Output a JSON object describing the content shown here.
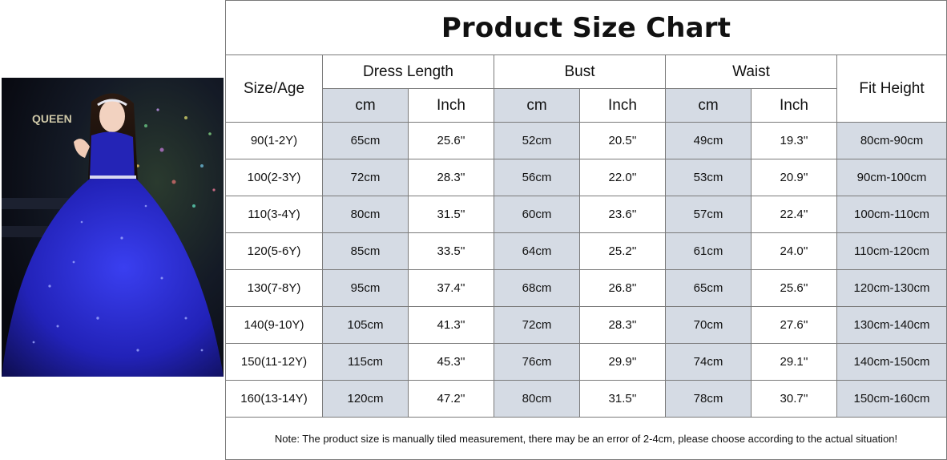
{
  "photo": {
    "signage_text": "QUEEN"
  },
  "chart": {
    "title": "Product Size Chart",
    "headers": {
      "size_age": "Size/Age",
      "dress_length": "Dress Length",
      "bust": "Bust",
      "waist": "Waist",
      "fit_height": "Fit Height",
      "cm": "cm",
      "inch": "Inch"
    },
    "rows": [
      {
        "size": "90(1-2Y)",
        "length_cm": "65cm",
        "length_in": "25.6''",
        "bust_cm": "52cm",
        "bust_in": "20.5''",
        "waist_cm": "49cm",
        "waist_in": "19.3''",
        "fit": "80cm-90cm"
      },
      {
        "size": "100(2-3Y)",
        "length_cm": "72cm",
        "length_in": "28.3''",
        "bust_cm": "56cm",
        "bust_in": "22.0''",
        "waist_cm": "53cm",
        "waist_in": "20.9''",
        "fit": "90cm-100cm"
      },
      {
        "size": "110(3-4Y)",
        "length_cm": "80cm",
        "length_in": "31.5''",
        "bust_cm": "60cm",
        "bust_in": "23.6''",
        "waist_cm": "57cm",
        "waist_in": "22.4''",
        "fit": "100cm-110cm"
      },
      {
        "size": "120(5-6Y)",
        "length_cm": "85cm",
        "length_in": "33.5''",
        "bust_cm": "64cm",
        "bust_in": "25.2''",
        "waist_cm": "61cm",
        "waist_in": "24.0''",
        "fit": "110cm-120cm"
      },
      {
        "size": "130(7-8Y)",
        "length_cm": "95cm",
        "length_in": "37.4''",
        "bust_cm": "68cm",
        "bust_in": "26.8''",
        "waist_cm": "65cm",
        "waist_in": "25.6''",
        "fit": "120cm-130cm"
      },
      {
        "size": "140(9-10Y)",
        "length_cm": "105cm",
        "length_in": "41.3''",
        "bust_cm": "72cm",
        "bust_in": "28.3''",
        "waist_cm": "70cm",
        "waist_in": "27.6''",
        "fit": "130cm-140cm"
      },
      {
        "size": "150(11-12Y)",
        "length_cm": "115cm",
        "length_in": "45.3''",
        "bust_cm": "76cm",
        "bust_in": "29.9''",
        "waist_cm": "74cm",
        "waist_in": "29.1''",
        "fit": "140cm-150cm"
      },
      {
        "size": "160(13-14Y)",
        "length_cm": "120cm",
        "length_in": "47.2''",
        "bust_cm": "80cm",
        "bust_in": "31.5''",
        "waist_cm": "78cm",
        "waist_in": "30.7''",
        "fit": "150cm-160cm"
      }
    ],
    "note": "Note: The product size is manually tiled measurement, there may be an error of 2-4cm, please choose according to the actual situation!"
  }
}
